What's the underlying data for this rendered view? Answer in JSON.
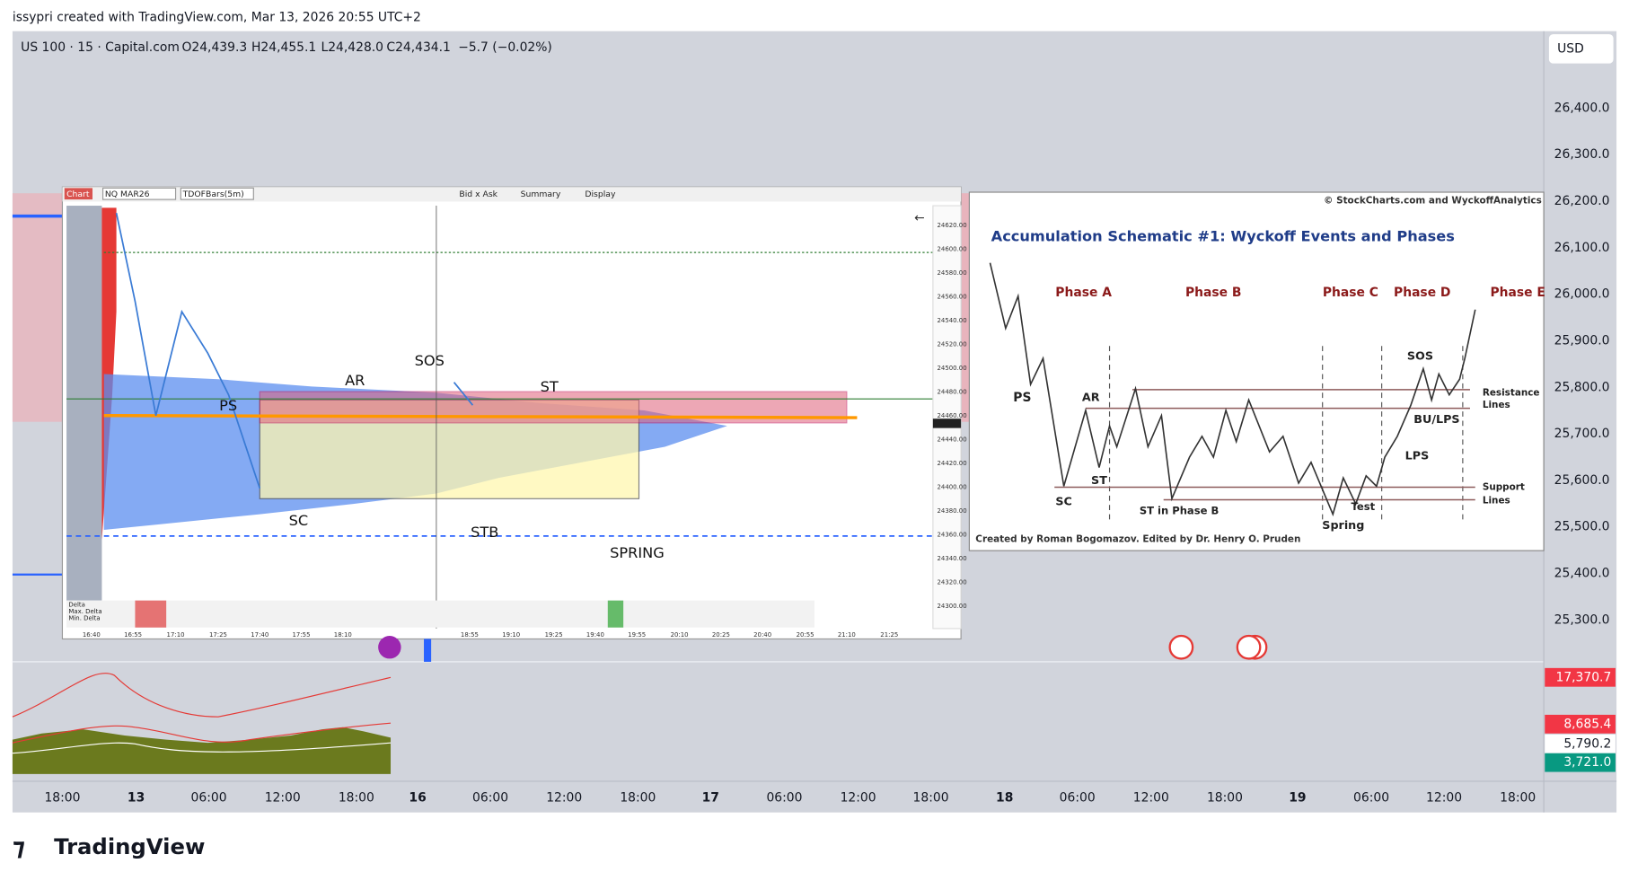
{
  "header": {
    "credit": "issypri created with TradingView.com, Mar 13, 2026 20:55 UTC+2",
    "symbol": "US 100 · 15 · Capital.com",
    "open": "O24,439.3",
    "high": "H24,455.1",
    "low": "L24,428.0",
    "close": "C24,434.1",
    "change": "−5.7 (−0.02%)"
  },
  "currency": "USD",
  "price_axis": [
    "26,400.0",
    "26,300.0",
    "26,200.0",
    "26,100.0",
    "26,000.0",
    "25,900.0",
    "25,800.0",
    "25,700.0",
    "25,600.0",
    "25,500.0",
    "25,400.0",
    "25,300.0"
  ],
  "indicator_axis": [
    "17,370.7",
    "8,685.4",
    "5,790.2",
    "3,721.0"
  ],
  "time_axis": [
    "18:00",
    "13",
    "06:00",
    "12:00",
    "18:00",
    "16",
    "06:00",
    "12:00",
    "18:00",
    "17",
    "06:00",
    "12:00",
    "18:00",
    "18",
    "06:00",
    "12:00",
    "18:00",
    "19",
    "06:00",
    "12:00",
    "18:00"
  ],
  "footprint": {
    "toolbar": [
      "Chart",
      "NQ MAR26",
      "TDOFBars(5m)",
      "Bid x Ask",
      "Summary",
      "Display"
    ],
    "prices": [
      "24620.00",
      "24600.00",
      "24580.00",
      "24560.00",
      "24540.00",
      "24520.00",
      "24500.00",
      "24480.00",
      "24460.00",
      "24440.00",
      "24420.00",
      "24400.00",
      "24380.00",
      "24360.00",
      "24340.00",
      "24320.00",
      "24300.00"
    ],
    "times": [
      "16:40",
      "16:55",
      "17:10",
      "17:25",
      "17:40",
      "17:55",
      "18:10",
      "18:55",
      "19:10",
      "19:25",
      "19:40",
      "19:55",
      "20:10",
      "20:25",
      "20:40",
      "20:55",
      "21:10",
      "21:25"
    ],
    "rows": [
      "Delta",
      "Max. Delta",
      "Min. Delta"
    ],
    "annotations": {
      "ps": "PS",
      "ar": "AR",
      "sos": "SOS",
      "st": "ST",
      "sc": "SC",
      "stb": "STB",
      "spring": "SPRING"
    }
  },
  "schematic": {
    "credit_top": "© StockCharts.com and WyckoffAnalytics",
    "title": "Accumulation Schematic #1: Wyckoff Events and Phases",
    "phases": [
      "Phase A",
      "Phase B",
      "Phase C",
      "Phase D",
      "Phase E"
    ],
    "labels": [
      "PS",
      "AR",
      "ST",
      "SC",
      "ST in Phase B",
      "Spring",
      "Test",
      "SOS",
      "BU/LPS",
      "LPS",
      "Resistance",
      "Lines",
      "Support",
      "Lines"
    ],
    "credit_bottom": "Created by Roman Bogomazov. Edited by Dr. Henry O. Pruden"
  },
  "footer": "TradingView"
}
